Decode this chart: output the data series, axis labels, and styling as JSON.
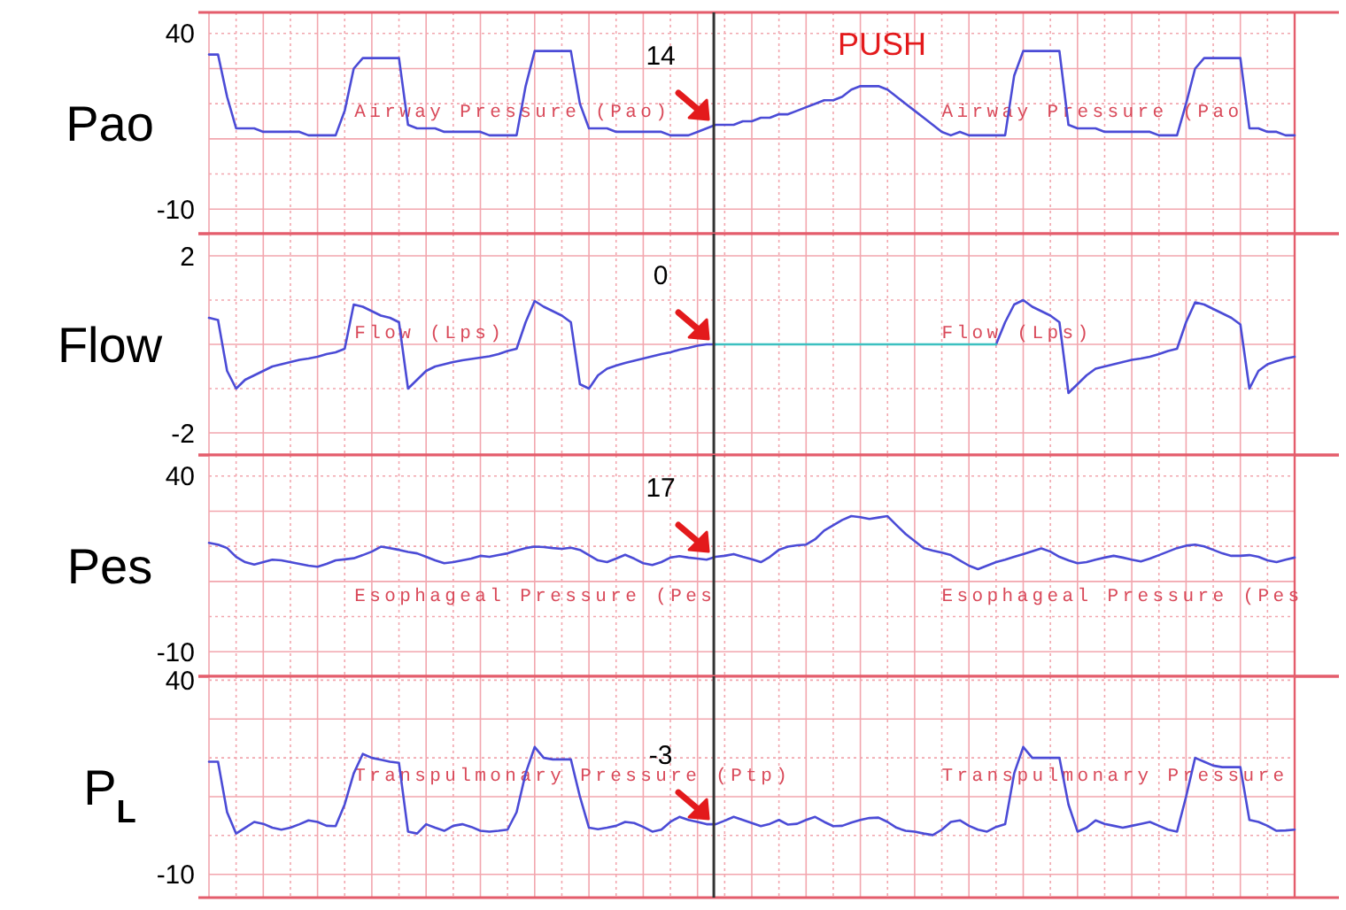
{
  "chart_data": [
    {
      "type": "line",
      "title": "PUSH",
      "ylabel": "Pao",
      "categories": [
        null,
        null,
        null,
        null,
        null,
        null,
        null,
        null,
        null,
        null,
        null,
        null,
        null,
        null,
        null,
        null,
        null,
        null,
        null,
        null,
        null,
        null,
        null,
        null,
        null,
        null,
        null,
        null,
        null,
        null,
        null,
        null,
        null,
        null,
        null,
        null,
        null,
        null,
        null,
        null,
        null,
        null,
        null,
        null,
        null,
        null,
        null,
        null,
        null,
        null,
        null,
        null,
        null,
        null,
        null,
        null,
        null,
        null,
        null,
        null,
        null,
        null,
        null,
        null,
        null,
        null,
        null,
        null,
        null,
        null,
        null,
        null,
        null,
        null,
        null,
        null,
        null,
        null,
        null,
        null,
        null,
        null,
        null,
        null,
        null,
        null,
        null,
        null,
        null,
        null,
        null,
        null,
        null,
        null,
        null,
        null,
        null,
        null,
        null,
        null,
        null,
        null,
        null,
        null,
        null,
        null,
        null,
        null,
        null,
        null,
        null,
        null,
        null,
        null,
        null,
        null,
        null,
        null,
        null,
        null,
        null
      ],
      "series": [
        {
          "color": "#4b4bd6",
          "values": [
            34,
            34,
            22,
            13,
            13,
            13,
            12,
            12,
            12,
            12,
            12,
            11,
            11,
            11,
            11,
            18,
            30,
            33,
            33,
            33,
            33,
            33,
            14,
            13,
            13,
            13,
            12,
            12,
            12,
            12,
            12,
            11,
            11,
            11,
            11,
            25,
            35,
            35,
            35,
            35,
            35,
            20,
            13,
            13,
            13,
            12,
            12,
            12,
            12,
            12,
            12,
            11,
            11,
            11,
            12,
            13,
            14,
            14,
            14,
            15,
            15,
            16,
            16,
            17,
            17,
            18,
            19,
            20,
            21,
            21,
            22,
            24,
            25,
            25,
            25,
            24,
            22,
            20,
            18,
            16,
            14,
            12,
            11,
            12,
            11,
            11,
            11,
            11,
            11,
            28,
            35,
            35,
            35,
            35,
            35,
            14,
            13,
            13,
            13,
            12,
            12,
            12,
            12,
            12,
            12,
            11,
            11,
            11,
            20,
            30,
            33,
            33,
            33,
            33,
            33,
            13,
            13,
            12,
            12,
            11,
            11
          ]
        }
      ],
      "ylim": [
        -17,
        46
      ],
      "yticks": [
        -10,
        {
          "value": 0,
          "label": null
        },
        {
          "value": 10,
          "label": null
        },
        {
          "value": 20,
          "label": null
        },
        {
          "value": 30,
          "label": null
        },
        40
      ],
      "grid": true,
      "tick_labels": "y",
      "annotations": [
        "Airway Pressure (Pao)",
        "Airway Pressure (Pao",
        {
          "text": "14",
          "y": 14
        }
      ]
    },
    {
      "type": "line",
      "ylabel": "Flow",
      "categories": [
        null,
        null,
        null,
        null,
        null,
        null,
        null,
        null,
        null,
        null,
        null,
        null,
        null,
        null,
        null,
        null,
        null,
        null,
        null,
        null,
        null,
        null,
        null,
        null,
        null,
        null,
        null,
        null,
        null,
        null,
        null,
        null,
        null,
        null,
        null,
        null,
        null,
        null,
        null,
        null,
        null,
        null,
        null,
        null,
        null,
        null,
        null,
        null,
        null,
        null,
        null,
        null,
        null,
        null,
        null,
        null,
        null,
        null,
        null,
        null,
        null,
        null,
        null,
        null,
        null,
        null,
        null,
        null,
        null,
        null,
        null,
        null,
        null,
        null,
        null,
        null,
        null,
        null,
        null,
        null,
        null,
        null,
        null,
        null,
        null,
        null,
        null,
        null,
        null,
        null,
        null,
        null,
        null,
        null,
        null,
        null,
        null,
        null,
        null,
        null,
        null,
        null,
        null,
        null,
        null,
        null,
        null,
        null,
        null,
        null,
        null,
        null,
        null,
        null,
        null,
        null,
        null,
        null,
        null,
        null,
        null
      ],
      "series": [
        {
          "color": "#4b4bd6",
          "values": [
            0.6,
            0.55,
            -0.6,
            -1.0,
            -0.8,
            -0.7,
            -0.6,
            -0.5,
            -0.45,
            -0.4,
            -0.35,
            -0.32,
            -0.28,
            -0.22,
            -0.18,
            -0.1,
            0.9,
            0.85,
            0.75,
            0.65,
            0.6,
            0.5,
            -1.0,
            -0.8,
            -0.6,
            -0.5,
            -0.45,
            -0.4,
            -0.36,
            -0.33,
            -0.3,
            -0.27,
            -0.22,
            -0.15,
            -0.1,
            0.5,
            0.98,
            0.85,
            0.75,
            0.65,
            0.5,
            -0.9,
            -1.0,
            -0.7,
            -0.55,
            -0.48,
            -0.42,
            -0.37,
            -0.32,
            -0.27,
            -0.22,
            -0.18,
            -0.12,
            -0.08,
            -0.03,
            0,
            0,
            null,
            null,
            null,
            null,
            null,
            null,
            null,
            null,
            null,
            null,
            null,
            null,
            null,
            null,
            null,
            null,
            null,
            null,
            null,
            null,
            null,
            null,
            null,
            null,
            null,
            null,
            null,
            null,
            null,
            null,
            0,
            0.5,
            0.9,
            1.0,
            0.85,
            0.75,
            0.65,
            0.5,
            -1.1,
            -0.9,
            -0.7,
            -0.55,
            -0.5,
            -0.45,
            -0.4,
            -0.35,
            -0.32,
            -0.28,
            -0.22,
            -0.15,
            -0.1,
            0.5,
            0.95,
            0.9,
            0.8,
            0.7,
            0.6,
            0.45,
            -1.0,
            -0.6,
            -0.45,
            -0.38,
            -0.32,
            -0.28
          ]
        },
        {
          "color": "#3cc0c0",
          "values": [
            null,
            null,
            null,
            null,
            null,
            null,
            null,
            null,
            null,
            null,
            null,
            null,
            null,
            null,
            null,
            null,
            null,
            null,
            null,
            null,
            null,
            null,
            null,
            null,
            null,
            null,
            null,
            null,
            null,
            null,
            null,
            null,
            null,
            null,
            null,
            null,
            null,
            null,
            null,
            null,
            null,
            null,
            null,
            null,
            null,
            null,
            null,
            null,
            null,
            null,
            null,
            null,
            null,
            null,
            null,
            null,
            0,
            0,
            0,
            0,
            0,
            0,
            0,
            0,
            0,
            0,
            0,
            0,
            0,
            0,
            0,
            0,
            0,
            0,
            0,
            0,
            0,
            0,
            0,
            0,
            0,
            0,
            0,
            0,
            0,
            0,
            0,
            0,
            null,
            null,
            null,
            null,
            null,
            null,
            null,
            null,
            null,
            null,
            null,
            null,
            null,
            null,
            null,
            null,
            null,
            null,
            null,
            null,
            null,
            null,
            null,
            null,
            null,
            null,
            null,
            null,
            null,
            null,
            null,
            null,
            null
          ]
        }
      ],
      "ylim": [
        -2.5,
        2.5
      ],
      "yticks": [
        -2,
        {
          "value": -1,
          "label": null
        },
        {
          "value": 0,
          "label": null
        },
        {
          "value": 1,
          "label": null
        },
        2
      ],
      "grid": true,
      "tick_labels": "y",
      "annotations": [
        "Flow (Lps)",
        "Flow (Lps)",
        {
          "text": "0",
          "y": 0
        }
      ]
    },
    {
      "type": "line",
      "ylabel": "Pes",
      "categories": [
        null,
        null,
        null,
        null,
        null,
        null,
        null,
        null,
        null,
        null,
        null,
        null,
        null,
        null,
        null,
        null,
        null,
        null,
        null,
        null,
        null,
        null,
        null,
        null,
        null,
        null,
        null,
        null,
        null,
        null,
        null,
        null,
        null,
        null,
        null,
        null,
        null,
        null,
        null,
        null,
        null,
        null,
        null,
        null,
        null,
        null,
        null,
        null,
        null,
        null,
        null,
        null,
        null,
        null,
        null,
        null,
        null,
        null,
        null,
        null,
        null,
        null,
        null,
        null,
        null,
        null,
        null,
        null,
        null,
        null,
        null,
        null,
        null,
        null,
        null,
        null,
        null,
        null,
        null,
        null,
        null,
        null,
        null,
        null,
        null,
        null,
        null,
        null,
        null,
        null,
        null,
        null,
        null,
        null,
        null,
        null,
        null,
        null,
        null,
        null,
        null,
        null,
        null,
        null,
        null,
        null,
        null,
        null,
        null,
        null,
        null,
        null,
        null,
        null,
        null,
        null,
        null,
        null,
        null,
        null,
        null
      ],
      "series": [
        {
          "color": "#4b4bd6",
          "values": [
            21,
            20.5,
            19.5,
            17,
            15.5,
            14.8,
            15.5,
            16.2,
            16,
            15.5,
            15,
            14.5,
            14.2,
            15,
            16,
            16.3,
            16.6,
            17.5,
            18.5,
            19.9,
            19.5,
            19,
            18.4,
            18,
            17,
            16,
            15.2,
            15.5,
            16,
            16.5,
            17.3,
            17,
            17.5,
            18,
            18.8,
            19.5,
            19.9,
            19.8,
            19.5,
            19.3,
            19.6,
            19,
            17.5,
            16,
            15.5,
            16.5,
            17.6,
            16.5,
            15.2,
            14.7,
            15.5,
            16.8,
            17.2,
            16.8,
            16.5,
            16.2,
            17,
            17.3,
            17.8,
            17,
            16.3,
            15.5,
            17,
            19,
            19.9,
            20.3,
            20.5,
            22,
            24.5,
            26,
            27.5,
            28.6,
            28.3,
            27.8,
            28.2,
            28.6,
            26,
            23.5,
            21.5,
            19.5,
            18.8,
            18.2,
            17.5,
            16,
            14.5,
            13.5,
            14.5,
            15.5,
            16.2,
            17,
            17.8,
            18.6,
            19.4,
            18.5,
            17,
            16,
            15.2,
            15.5,
            16.2,
            16.8,
            17.3,
            16.8,
            16.2,
            15.7,
            16.5,
            17.5,
            18.5,
            19.5,
            20.2,
            20.5,
            20,
            19,
            18,
            17.3,
            17.3,
            17.5,
            17,
            16,
            15.5,
            16.2,
            16.8
          ]
        }
      ],
      "ylim": [
        -17,
        46
      ],
      "yticks": [
        -10,
        {
          "value": 0,
          "label": null
        },
        {
          "value": 10,
          "label": null
        },
        {
          "value": 20,
          "label": null
        },
        {
          "value": 30,
          "label": null
        },
        40
      ],
      "grid": true,
      "tick_labels": "y",
      "annotations": [
        "Esophageal Pressure (Pes",
        "Esophageal Pressure (Pes",
        {
          "text": "17",
          "y": 17
        }
      ]
    },
    {
      "type": "line",
      "ylabel": "P$_{L}$",
      "categories": [
        null,
        null,
        null,
        null,
        null,
        null,
        null,
        null,
        null,
        null,
        null,
        null,
        null,
        null,
        null,
        null,
        null,
        null,
        null,
        null,
        null,
        null,
        null,
        null,
        null,
        null,
        null,
        null,
        null,
        null,
        null,
        null,
        null,
        null,
        null,
        null,
        null,
        null,
        null,
        null,
        null,
        null,
        null,
        null,
        null,
        null,
        null,
        null,
        null,
        null,
        null,
        null,
        null,
        null,
        null,
        null,
        null,
        null,
        null,
        null,
        null,
        null,
        null,
        null,
        null,
        null,
        null,
        null,
        null,
        null,
        null,
        null,
        null,
        null,
        null,
        null,
        null,
        null,
        null,
        null,
        null,
        null,
        null,
        null,
        null,
        null,
        null,
        null,
        null,
        null,
        null,
        null,
        null,
        null,
        null,
        null,
        null,
        null,
        null,
        null,
        null,
        null,
        null,
        null,
        null,
        null,
        null,
        null,
        null,
        null,
        null,
        null,
        null,
        null,
        null,
        null,
        null,
        null,
        null,
        null,
        null
      ],
      "series": [
        {
          "color": "#4b4bd6",
          "values": [
            19,
            19,
            6,
            0.5,
            2,
            3.5,
            3,
            2,
            1.5,
            2,
            2.9,
            3.9,
            3.5,
            2.5,
            2.4,
            8,
            16,
            21,
            20,
            19.5,
            19,
            18.7,
            1,
            0.5,
            2.9,
            2,
            1.2,
            2.5,
            2.9,
            2.2,
            1.2,
            1,
            1.2,
            1.5,
            6,
            16,
            22.8,
            20,
            19.6,
            19.6,
            19.6,
            10,
            2,
            1.6,
            2,
            2.5,
            3.5,
            3.2,
            2.2,
            1,
            1.5,
            3.5,
            4.8,
            4,
            3.5,
            2.9,
            2.9,
            3.8,
            4.8,
            4,
            3.2,
            2.4,
            3,
            4,
            2.8,
            3,
            4,
            4.8,
            3.5,
            2.4,
            2.5,
            3.3,
            4,
            4.5,
            4.6,
            3.5,
            2,
            1.2,
            1,
            0.5,
            0.1,
            1.5,
            3.5,
            3.9,
            2.5,
            1.5,
            1,
            2.2,
            2.9,
            16,
            22.8,
            20,
            20,
            20,
            20,
            8,
            1,
            2,
            3.9,
            3,
            2.5,
            2,
            2.5,
            3,
            3.5,
            2.5,
            1.5,
            1,
            10,
            20,
            19,
            18,
            17.6,
            17.6,
            17.6,
            4,
            3.5,
            2.5,
            1.2,
            1.3,
            1.5
          ]
        }
      ],
      "ylim": [
        -16,
        41
      ],
      "yticks": [
        -10,
        {
          "value": 0,
          "label": null
        },
        {
          "value": 10,
          "label": null
        },
        {
          "value": 20,
          "label": null
        },
        {
          "value": 30,
          "label": null
        },
        40
      ],
      "grid": true,
      "tick_labels": "y",
      "annotations": [
        "Transpulmonary Pressure (Ptp)",
        "Transpulmonary Pressure",
        {
          "text": "-3",
          "y": 2.9
        }
      ]
    }
  ]
}
